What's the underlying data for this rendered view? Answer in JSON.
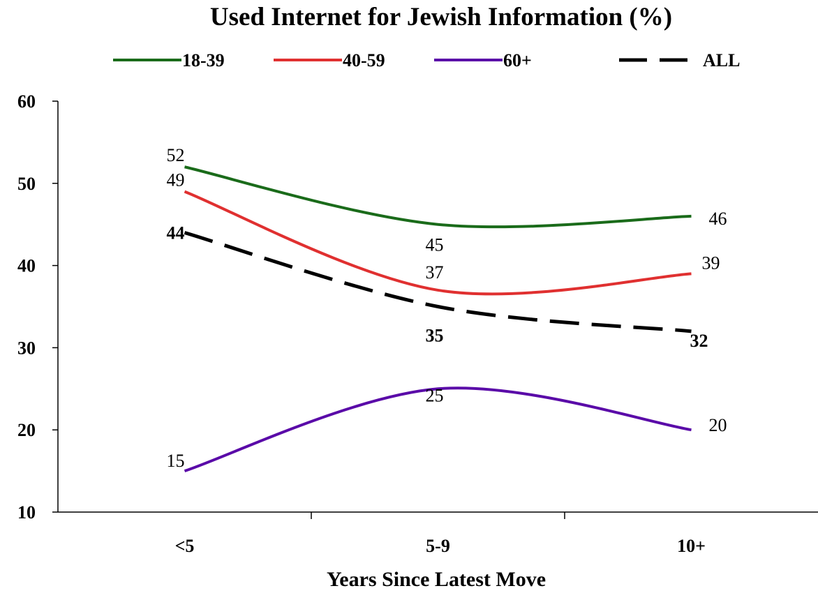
{
  "chart_data": {
    "type": "line",
    "title": "Used Internet for Jewish Information (%)",
    "xlabel": "Years Since Latest Move",
    "ylabel": "",
    "categories": [
      "<5",
      "5-9",
      "10+"
    ],
    "ylim": [
      10,
      60
    ],
    "yticks": [
      "10",
      "20",
      "30",
      "40",
      "50",
      "60"
    ],
    "grid": false,
    "legend_position": "top",
    "series": [
      {
        "name": "18-39",
        "values": [
          52,
          45,
          46
        ],
        "labels": [
          "52",
          "45",
          "46"
        ],
        "color": "#1a6b1a",
        "dash": "solid"
      },
      {
        "name": "40-59",
        "values": [
          49,
          37,
          39
        ],
        "labels": [
          "49",
          "37",
          "39"
        ],
        "color": "#e03030",
        "dash": "solid"
      },
      {
        "name": "60+",
        "values": [
          15,
          25,
          20
        ],
        "labels": [
          "15",
          "25",
          "20"
        ],
        "color": "#5a0aa8",
        "dash": "solid"
      },
      {
        "name": "ALL",
        "values": [
          44,
          35,
          32
        ],
        "labels": [
          "44",
          "35",
          "32"
        ],
        "color": "#000000",
        "dash": "dashed"
      }
    ]
  }
}
